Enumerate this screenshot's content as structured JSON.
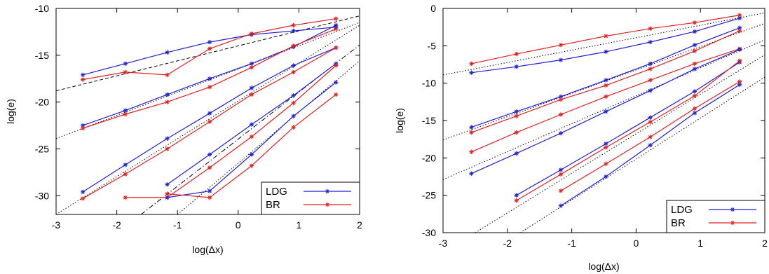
{
  "colors": {
    "LDG": "#1f1fd6",
    "BR": "#e01f1f",
    "reference": "#000000"
  },
  "chart_data": [
    {
      "type": "line",
      "xlabel": "log(Δx)",
      "ylabel": "log(e)",
      "xlim": [
        -3,
        2
      ],
      "ylim": [
        -32,
        -10
      ],
      "xticks": [
        -3,
        -2,
        -1,
        0,
        1,
        2
      ],
      "yticks": [
        -10,
        -15,
        -20,
        -25,
        -30
      ],
      "grid": false,
      "legend_position": "bottom-right",
      "series": [
        {
          "name": "LDG",
          "color_key": "LDG",
          "show_legend": true,
          "x": [
            -2.56,
            -1.86,
            -1.17,
            -0.47,
            0.22,
            0.91,
            1.61
          ],
          "y": [
            -17.1,
            -15.9,
            -14.7,
            -13.6,
            -12.8,
            -12.4,
            -12.0
          ]
        },
        {
          "name": "BR",
          "color_key": "BR",
          "show_legend": true,
          "x": [
            -2.56,
            -1.86,
            -1.17,
            -0.47,
            0.22,
            0.91,
            1.61
          ],
          "y": [
            -17.6,
            -16.8,
            -17.1,
            -14.3,
            -12.7,
            -11.8,
            -11.1
          ]
        },
        {
          "color_key": "LDG",
          "x": [
            -2.56,
            -1.86,
            -1.17,
            -0.47,
            0.22,
            0.91,
            1.61
          ],
          "y": [
            -22.5,
            -20.9,
            -19.2,
            -17.5,
            -15.9,
            -14.1,
            -11.8
          ]
        },
        {
          "color_key": "BR",
          "x": [
            -2.56,
            -1.86,
            -1.17,
            -0.47,
            0.22,
            0.91,
            1.61
          ],
          "y": [
            -22.8,
            -21.3,
            -20.0,
            -18.4,
            -16.3,
            -14.0,
            -12.2
          ]
        },
        {
          "color_key": "LDG",
          "x": [
            -2.56,
            -1.86,
            -1.17,
            -0.47,
            0.22,
            0.91,
            1.61
          ],
          "y": [
            -29.6,
            -26.7,
            -23.9,
            -21.2,
            -18.5,
            -16.1,
            -14.2
          ]
        },
        {
          "color_key": "BR",
          "x": [
            -2.56,
            -1.86,
            -1.17,
            -0.47,
            0.22,
            0.91,
            1.61
          ],
          "y": [
            -30.3,
            -27.7,
            -25.0,
            -22.1,
            -19.2,
            -16.8,
            -14.2
          ]
        },
        {
          "color_key": "LDG",
          "x": [
            -1.17,
            -0.47,
            0.22,
            0.91,
            1.61
          ],
          "y": [
            -28.8,
            -25.6,
            -22.4,
            -19.3,
            -15.9
          ]
        },
        {
          "color_key": "BR",
          "x": [
            -1.86,
            -1.17,
            -0.47,
            0.22,
            0.91,
            1.61
          ],
          "y": [
            -30.2,
            -30.2,
            -27.0,
            -23.7,
            -20.1,
            -16.1
          ]
        },
        {
          "color_key": "LDG",
          "x": [
            -1.17,
            -0.47,
            0.22,
            0.91,
            1.61
          ],
          "y": [
            -30.2,
            -29.5,
            -25.6,
            -21.5,
            -17.9
          ]
        },
        {
          "color_key": "BR",
          "x": [
            -1.17,
            -0.47,
            0.22,
            0.91,
            1.61
          ],
          "y": [
            -29.8,
            -30.2,
            -26.8,
            -22.7,
            -19.2
          ]
        }
      ],
      "reference_lines": [
        {
          "style": "dashed",
          "x": [
            -3,
            2
          ],
          "y": [
            -18.8,
            -10.8
          ]
        },
        {
          "style": "dotted",
          "x": [
            -3,
            2
          ],
          "y": [
            -23.9,
            -11.5
          ]
        },
        {
          "style": "dotted",
          "x": [
            -3,
            2
          ],
          "y": [
            -32.0,
            -11.8
          ]
        },
        {
          "style": "dashdot",
          "x": [
            -1.6,
            2
          ],
          "y": [
            -32.0,
            -13.9
          ]
        },
        {
          "style": "dotted",
          "x": [
            -1.0,
            2
          ],
          "y": [
            -32.0,
            -15.6
          ]
        }
      ]
    },
    {
      "type": "line",
      "xlabel": "log(Δx)",
      "ylabel": "log(e)",
      "xlim": [
        -3,
        2
      ],
      "ylim": [
        -30,
        0
      ],
      "xticks": [
        -3,
        -2,
        -1,
        0,
        1,
        2
      ],
      "yticks": [
        0,
        -5,
        -10,
        -15,
        -20,
        -25,
        -30
      ],
      "grid": false,
      "legend_position": "bottom-right",
      "series": [
        {
          "name": "LDG",
          "color_key": "LDG",
          "show_legend": true,
          "x": [
            -2.56,
            -1.86,
            -1.17,
            -0.47,
            0.22,
            0.91,
            1.61
          ],
          "y": [
            -8.6,
            -7.8,
            -6.9,
            -5.8,
            -4.5,
            -3.1,
            -1.3
          ]
        },
        {
          "name": "BR",
          "color_key": "BR",
          "show_legend": true,
          "x": [
            -2.56,
            -1.86,
            -1.17,
            -0.47,
            0.22,
            0.91,
            1.61
          ],
          "y": [
            -7.4,
            -6.1,
            -4.9,
            -3.7,
            -2.7,
            -1.9,
            -0.9
          ]
        },
        {
          "color_key": "LDG",
          "x": [
            -2.56,
            -1.86,
            -1.17,
            -0.47,
            0.22,
            0.91,
            1.61
          ],
          "y": [
            -15.9,
            -13.8,
            -11.8,
            -9.6,
            -7.4,
            -4.9,
            -2.6
          ]
        },
        {
          "color_key": "BR",
          "x": [
            -2.56,
            -1.86,
            -1.17,
            -0.47,
            0.22,
            0.91,
            1.61
          ],
          "y": [
            -16.6,
            -14.4,
            -12.2,
            -10.3,
            -8.1,
            -5.7,
            -3.0
          ]
        },
        {
          "color_key": "BR",
          "x": [
            -2.56,
            -1.86,
            -1.17,
            -0.47,
            0.22,
            0.91,
            1.61
          ],
          "y": [
            -19.2,
            -16.6,
            -14.2,
            -11.8,
            -9.6,
            -7.4,
            -5.4
          ]
        },
        {
          "color_key": "LDG",
          "x": [
            -2.56,
            -1.86,
            -1.17,
            -0.47,
            0.22,
            0.91,
            1.61
          ],
          "y": [
            -22.1,
            -19.4,
            -16.7,
            -13.8,
            -11.0,
            -8.1,
            -5.5
          ]
        },
        {
          "color_key": "LDG",
          "x": [
            -1.86,
            -1.17,
            -0.47,
            0.22,
            0.91,
            1.61
          ],
          "y": [
            -25.0,
            -21.6,
            -18.1,
            -14.6,
            -11.1,
            -7.2
          ]
        },
        {
          "color_key": "BR",
          "x": [
            -1.86,
            -1.17,
            -0.47,
            0.22,
            0.91,
            1.61
          ],
          "y": [
            -25.7,
            -22.2,
            -18.6,
            -15.2,
            -11.7,
            -7.0
          ]
        },
        {
          "color_key": "BR",
          "x": [
            -1.17,
            -0.47,
            0.22,
            0.91,
            1.61
          ],
          "y": [
            -24.4,
            -20.8,
            -17.2,
            -13.4,
            -9.8
          ]
        },
        {
          "color_key": "LDG",
          "x": [
            -1.17,
            -0.47,
            0.22,
            0.91,
            1.61
          ],
          "y": [
            -26.4,
            -22.5,
            -18.3,
            -14.0,
            -10.2
          ]
        }
      ],
      "reference_lines": [
        {
          "style": "dotted",
          "x": [
            -3,
            2
          ],
          "y": [
            -8.9,
            -0.6
          ]
        },
        {
          "style": "dotted",
          "x": [
            -3,
            2
          ],
          "y": [
            -17.6,
            -2.0
          ]
        },
        {
          "style": "dotted",
          "x": [
            -3,
            2
          ],
          "y": [
            -22.9,
            -4.2
          ]
        },
        {
          "style": "dotted",
          "x": [
            -2.5,
            2
          ],
          "y": [
            -30.0,
            -6.2
          ]
        },
        {
          "style": "dotted",
          "x": [
            -1.8,
            2
          ],
          "y": [
            -30.0,
            -9.2
          ]
        }
      ]
    }
  ]
}
